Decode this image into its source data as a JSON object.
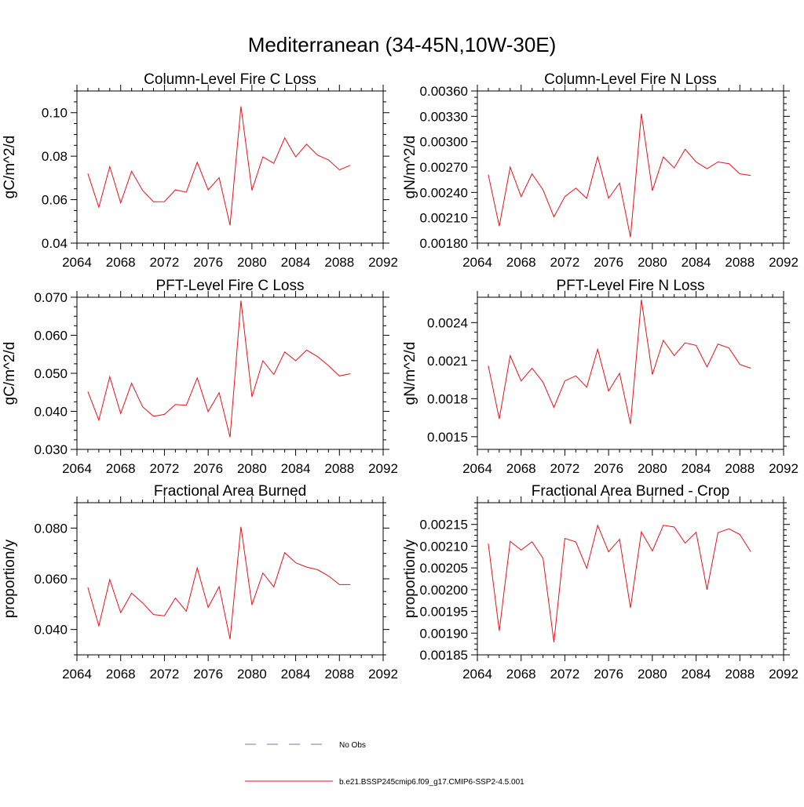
{
  "figure": {
    "title": "Mediterranean (34-45N,10W-30E)",
    "series_color": "#e8121a",
    "obs_color": "#6a78c8"
  },
  "legend": {
    "items": [
      {
        "label": "No Obs",
        "style": "dashed",
        "color": "#6a78c8"
      },
      {
        "label": "b.e21.BSSP245cmip6.f09_g17.CMIP6-SSP2-4.5.001",
        "style": "solid",
        "color": "#e8121a"
      }
    ]
  },
  "chart_data": [
    {
      "type": "line",
      "title": "Column-Level Fire C Loss",
      "ylabel": "gC/m^2/d",
      "xlim": [
        2064,
        2092
      ],
      "ylim": [
        0.04,
        0.11
      ],
      "xticks": [
        2064,
        2068,
        2072,
        2076,
        2080,
        2084,
        2088,
        2092
      ],
      "yticks": [
        0.04,
        0.06,
        0.08,
        0.1
      ],
      "yticklabels": [
        "0.04",
        "0.06",
        "0.08",
        "0.10"
      ],
      "x": [
        2065,
        2066,
        2067,
        2068,
        2069,
        2070,
        2071,
        2072,
        2073,
        2074,
        2075,
        2076,
        2077,
        2078,
        2079,
        2080,
        2081,
        2082,
        2083,
        2084,
        2085,
        2086,
        2087,
        2088,
        2089
      ],
      "series": [
        {
          "name": "b.e21.BSSP245cmip6.f09_g17.CMIP6-SSP2-4.5.001",
          "values": [
            0.072,
            0.0565,
            0.0752,
            0.0585,
            0.0731,
            0.0643,
            0.059,
            0.0591,
            0.0645,
            0.0634,
            0.0772,
            0.0645,
            0.0701,
            0.0482,
            0.1029,
            0.0643,
            0.0797,
            0.0767,
            0.0884,
            0.0797,
            0.0855,
            0.0805,
            0.0783,
            0.0737,
            0.0758
          ]
        }
      ]
    },
    {
      "type": "line",
      "title": "Column-Level Fire N Loss",
      "ylabel": "gN/m^2/d",
      "xlim": [
        2064,
        2092
      ],
      "ylim": [
        0.0018,
        0.0036
      ],
      "xticks": [
        2064,
        2068,
        2072,
        2076,
        2080,
        2084,
        2088,
        2092
      ],
      "yticks": [
        0.0018,
        0.0021,
        0.0024,
        0.0027,
        0.003,
        0.0033,
        0.0036
      ],
      "yticklabels": [
        "0.00180",
        "0.00210",
        "0.00240",
        "0.00270",
        "0.00300",
        "0.00330",
        "0.00360"
      ],
      "x": [
        2065,
        2066,
        2067,
        2068,
        2069,
        2070,
        2071,
        2072,
        2073,
        2074,
        2075,
        2076,
        2077,
        2078,
        2079,
        2080,
        2081,
        2082,
        2083,
        2084,
        2085,
        2086,
        2087,
        2088,
        2089
      ],
      "series": [
        {
          "name": "b.e21.BSSP245cmip6.f09_g17.CMIP6-SSP2-4.5.001",
          "values": [
            0.00261,
            0.002,
            0.0027,
            0.00235,
            0.00262,
            0.00243,
            0.00211,
            0.00235,
            0.00245,
            0.00233,
            0.00282,
            0.00233,
            0.00251,
            0.00187,
            0.00333,
            0.00242,
            0.00282,
            0.00269,
            0.00291,
            0.00276,
            0.00268,
            0.00276,
            0.00274,
            0.00262,
            0.0026
          ]
        }
      ]
    },
    {
      "type": "line",
      "title": "PFT-Level Fire C Loss",
      "ylabel": "gC/m^2/d",
      "xlim": [
        2064,
        2092
      ],
      "ylim": [
        0.03,
        0.07
      ],
      "xticks": [
        2064,
        2068,
        2072,
        2076,
        2080,
        2084,
        2088,
        2092
      ],
      "yticks": [
        0.03,
        0.04,
        0.05,
        0.06,
        0.07
      ],
      "yticklabels": [
        "0.030",
        "0.040",
        "0.050",
        "0.060",
        "0.070"
      ],
      "x": [
        2065,
        2066,
        2067,
        2068,
        2069,
        2070,
        2071,
        2072,
        2073,
        2074,
        2075,
        2076,
        2077,
        2078,
        2079,
        2080,
        2081,
        2082,
        2083,
        2084,
        2085,
        2086,
        2087,
        2088,
        2089
      ],
      "series": [
        {
          "name": "b.e21.BSSP245cmip6.f09_g17.CMIP6-SSP2-4.5.001",
          "values": [
            0.0452,
            0.0377,
            0.0491,
            0.0394,
            0.0474,
            0.0412,
            0.0387,
            0.0392,
            0.0418,
            0.0416,
            0.0488,
            0.0399,
            0.0449,
            0.0332,
            0.0691,
            0.0438,
            0.0533,
            0.0497,
            0.0556,
            0.0533,
            0.0561,
            0.0544,
            0.052,
            0.0493,
            0.0499
          ]
        }
      ]
    },
    {
      "type": "line",
      "title": "PFT-Level Fire N Loss",
      "ylabel": "gN/m^2/d",
      "xlim": [
        2064,
        2092
      ],
      "ylim": [
        0.0014,
        0.0026
      ],
      "xticks": [
        2064,
        2068,
        2072,
        2076,
        2080,
        2084,
        2088,
        2092
      ],
      "yticks": [
        0.0015,
        0.0018,
        0.0021,
        0.0024
      ],
      "yticklabels": [
        "0.0015",
        "0.0018",
        "0.0021",
        "0.0024"
      ],
      "x": [
        2065,
        2066,
        2067,
        2068,
        2069,
        2070,
        2071,
        2072,
        2073,
        2074,
        2075,
        2076,
        2077,
        2078,
        2079,
        2080,
        2081,
        2082,
        2083,
        2084,
        2085,
        2086,
        2087,
        2088,
        2089
      ],
      "series": [
        {
          "name": "b.e21.BSSP245cmip6.f09_g17.CMIP6-SSP2-4.5.001",
          "values": [
            0.00206,
            0.00164,
            0.00214,
            0.00194,
            0.00204,
            0.00193,
            0.00173,
            0.00194,
            0.00198,
            0.00189,
            0.00219,
            0.00186,
            0.002,
            0.0016,
            0.00258,
            0.00199,
            0.00226,
            0.00214,
            0.00224,
            0.00222,
            0.00205,
            0.00223,
            0.0022,
            0.00207,
            0.00204
          ]
        }
      ]
    },
    {
      "type": "line",
      "title": "Fractional Area Burned",
      "ylabel": "proportion/y",
      "xlim": [
        2064,
        2092
      ],
      "ylim": [
        0.03,
        0.09
      ],
      "xticks": [
        2064,
        2068,
        2072,
        2076,
        2080,
        2084,
        2088,
        2092
      ],
      "yticks": [
        0.04,
        0.06,
        0.08
      ],
      "yticklabels": [
        "0.040",
        "0.060",
        "0.080"
      ],
      "x": [
        2065,
        2066,
        2067,
        2068,
        2069,
        2070,
        2071,
        2072,
        2073,
        2074,
        2075,
        2076,
        2077,
        2078,
        2079,
        2080,
        2081,
        2082,
        2083,
        2084,
        2085,
        2086,
        2087,
        2088,
        2089
      ],
      "series": [
        {
          "name": "b.e21.BSSP245cmip6.f09_g17.CMIP6-SSP2-4.5.001",
          "values": [
            0.0566,
            0.0414,
            0.0597,
            0.0466,
            0.0543,
            0.0505,
            0.0459,
            0.0454,
            0.0524,
            0.0472,
            0.0643,
            0.0487,
            0.0569,
            0.0362,
            0.0805,
            0.0497,
            0.0623,
            0.0568,
            0.0703,
            0.0663,
            0.0646,
            0.0636,
            0.0611,
            0.0577,
            0.0577
          ]
        }
      ]
    },
    {
      "type": "line",
      "title": "Fractional Area Burned - Crop",
      "ylabel": "proportion/y",
      "xlim": [
        2064,
        2092
      ],
      "ylim": [
        0.00185,
        0.0022
      ],
      "xticks": [
        2064,
        2068,
        2072,
        2076,
        2080,
        2084,
        2088,
        2092
      ],
      "yticks": [
        0.00185,
        0.0019,
        0.00195,
        0.002,
        0.00205,
        0.0021,
        0.00215
      ],
      "yticklabels": [
        "0.00185",
        "0.00190",
        "0.00195",
        "0.00200",
        "0.00205",
        "0.00210",
        "0.00215"
      ],
      "x": [
        2065,
        2066,
        2067,
        2068,
        2069,
        2070,
        2071,
        2072,
        2073,
        2074,
        2075,
        2076,
        2077,
        2078,
        2079,
        2080,
        2081,
        2082,
        2083,
        2084,
        2085,
        2086,
        2087,
        2088,
        2089
      ],
      "series": [
        {
          "name": "b.e21.BSSP245cmip6.f09_g17.CMIP6-SSP2-4.5.001",
          "values": [
            0.002106,
            0.001905,
            0.002111,
            0.002091,
            0.00211,
            0.002072,
            0.001879,
            0.002118,
            0.00211,
            0.002049,
            0.002148,
            0.002087,
            0.002116,
            0.001958,
            0.002133,
            0.002089,
            0.002148,
            0.002144,
            0.002107,
            0.002132,
            0.002,
            0.002131,
            0.00214,
            0.002127,
            0.002087
          ]
        }
      ]
    }
  ]
}
